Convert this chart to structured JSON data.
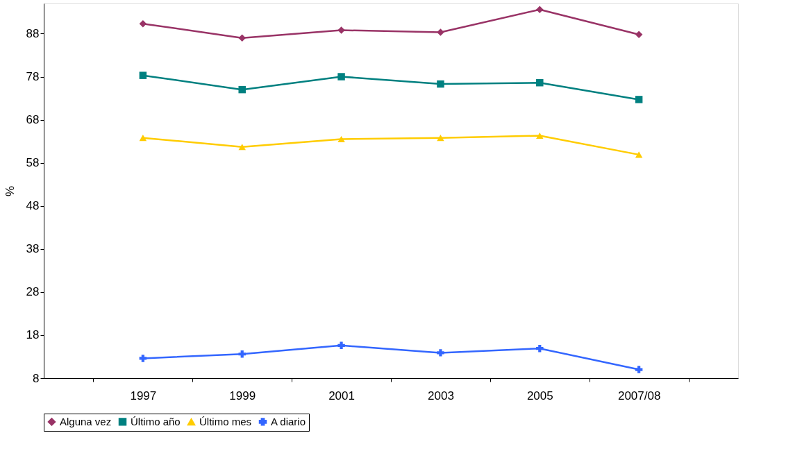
{
  "chart_data": {
    "type": "line",
    "ylabel": "%",
    "categories": [
      "1997",
      "1999",
      "2001",
      "2003",
      "2005",
      "2007/08"
    ],
    "series": [
      {
        "name": "Alguna vez",
        "color": "#993366",
        "marker": "diamond",
        "values": [
          90.3,
          87.0,
          88.8,
          88.3,
          93.6,
          87.8
        ]
      },
      {
        "name": "Último año",
        "color": "#008080",
        "marker": "square",
        "values": [
          78.3,
          75.0,
          78.0,
          76.3,
          76.6,
          72.7
        ]
      },
      {
        "name": "Último mes",
        "color": "#ffcc00",
        "marker": "triangle",
        "values": [
          63.8,
          61.7,
          63.5,
          63.8,
          64.3,
          59.9
        ]
      },
      {
        "name": "A diario",
        "color": "#3366ff",
        "marker": "cross",
        "values": [
          12.6,
          13.6,
          15.6,
          13.9,
          14.9,
          10.0
        ]
      }
    ],
    "ylim": [
      8,
      95
    ],
    "yticks": [
      8,
      18,
      28,
      38,
      48,
      58,
      68,
      78,
      88
    ],
    "grid": false,
    "legend": "bottom",
    "line_style": "solid"
  }
}
